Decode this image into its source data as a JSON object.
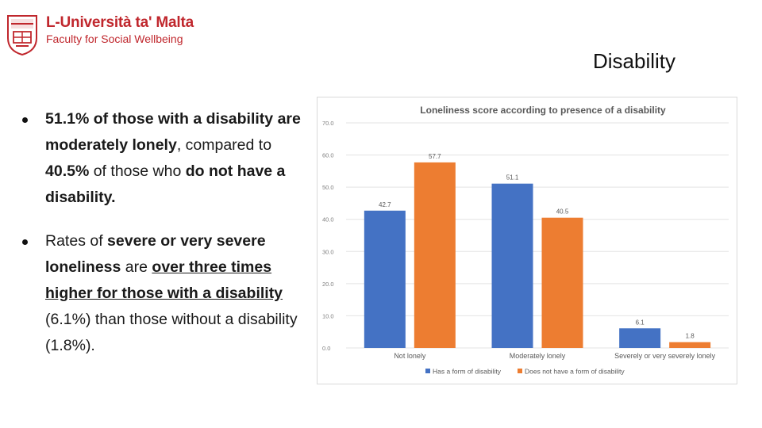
{
  "logo": {
    "line1": "L-Università ta' Malta",
    "line2": "Faculty for Social Wellbeing"
  },
  "slide": {
    "title": "Disability"
  },
  "bullets": [
    {
      "parts": [
        {
          "text": "51.1% of those with a disability are moderately lonely",
          "bold": true
        },
        {
          "text": ", compared to "
        },
        {
          "text": "40.5%",
          "bold": true
        },
        {
          "text": " of those who "
        },
        {
          "text": "do not have a disability.",
          "bold": true
        }
      ]
    },
    {
      "parts": [
        {
          "text": "Rates of "
        },
        {
          "text": "severe or very severe loneliness",
          "bold": true
        },
        {
          "text": " are "
        },
        {
          "text": "over three times higher for those with a disability",
          "bold": true,
          "underline": true
        },
        {
          "text": " (6.1%) than those without a disability (1.8%)."
        }
      ]
    }
  ],
  "chart_data": {
    "type": "bar",
    "title": "Loneliness score according to presence of a disability",
    "categories": [
      "Not lonely",
      "Moderately lonely",
      "Severely or very severely lonely"
    ],
    "series": [
      {
        "name": "Has a form of disability",
        "values": [
          42.7,
          51.1,
          6.1
        ],
        "color": "#4472c4"
      },
      {
        "name": "Does not have a form of disability",
        "values": [
          57.7,
          40.5,
          1.8
        ],
        "color": "#ed7d31"
      }
    ],
    "ylim": [
      0,
      70
    ],
    "yticks": [
      0,
      10,
      20,
      30,
      40,
      50,
      60,
      70
    ],
    "grid": true,
    "legend": "bottom",
    "data_labels": true
  }
}
